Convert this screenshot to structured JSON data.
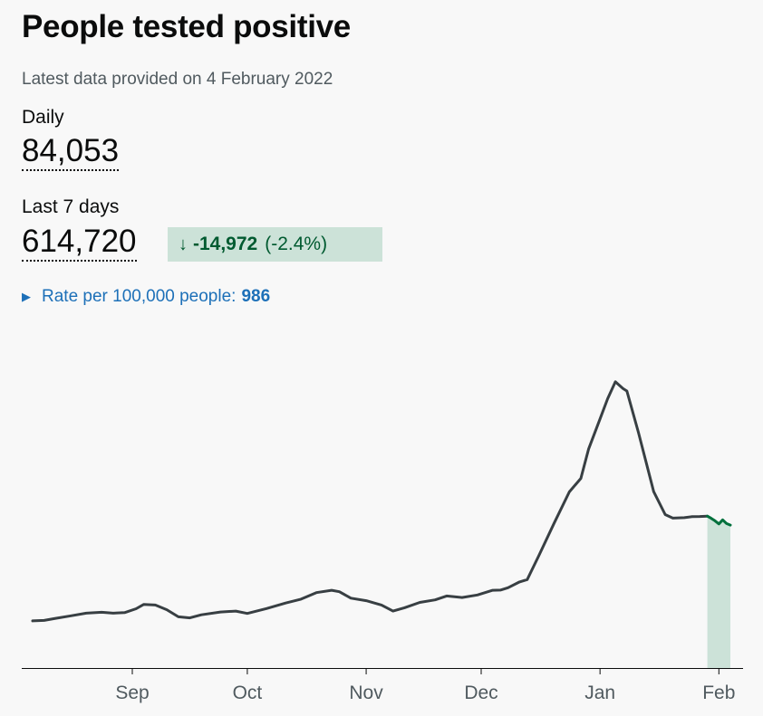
{
  "header": {
    "title": "People tested positive",
    "updated": "Latest data provided on 4 February 2022"
  },
  "metrics": {
    "daily_label": "Daily",
    "daily_value": "84,053",
    "week_label": "Last 7 days",
    "week_value": "614,720",
    "change_arrow": "↓",
    "change_value": "-14,972",
    "change_percent": "(-2.4%)"
  },
  "rate": {
    "label": "Rate per 100,000 people:",
    "value": "986"
  },
  "colors": {
    "line": "#383f43",
    "recent_line": "#00703c",
    "recent_fill": "#cce2d8",
    "axis": "#0b0c0c",
    "tick_text": "#505a5f"
  },
  "chart_data": {
    "type": "line",
    "x_ticks": [
      "Sep",
      "Oct",
      "Nov",
      "Dec",
      "Jan",
      "Feb"
    ],
    "x_domain": [
      "2021-08-06",
      "2022-02-04"
    ],
    "y_domain": [
      0,
      186000
    ],
    "highlight_from": "2022-01-29",
    "series": [
      {
        "points": [
          [
            "2021-08-06",
            28000
          ],
          [
            "2021-08-09",
            28300
          ],
          [
            "2021-08-12",
            29500
          ],
          [
            "2021-08-16",
            31000
          ],
          [
            "2021-08-20",
            32600
          ],
          [
            "2021-08-24",
            33100
          ],
          [
            "2021-08-27",
            32600
          ],
          [
            "2021-08-30",
            32900
          ],
          [
            "2021-09-02",
            35200
          ],
          [
            "2021-09-04",
            37800
          ],
          [
            "2021-09-07",
            37400
          ],
          [
            "2021-09-10",
            34600
          ],
          [
            "2021-09-13",
            30400
          ],
          [
            "2021-09-16",
            29800
          ],
          [
            "2021-09-19",
            31600
          ],
          [
            "2021-09-24",
            33300
          ],
          [
            "2021-09-28",
            33800
          ],
          [
            "2021-10-01",
            32400
          ],
          [
            "2021-10-06",
            35300
          ],
          [
            "2021-10-11",
            38600
          ],
          [
            "2021-10-15",
            40900
          ],
          [
            "2021-10-19",
            44800
          ],
          [
            "2021-10-23",
            46200
          ],
          [
            "2021-10-25",
            45300
          ],
          [
            "2021-10-28",
            41500
          ],
          [
            "2021-11-01",
            40000
          ],
          [
            "2021-11-05",
            37400
          ],
          [
            "2021-11-08",
            33800
          ],
          [
            "2021-11-11",
            35800
          ],
          [
            "2021-11-15",
            39000
          ],
          [
            "2021-11-19",
            40500
          ],
          [
            "2021-11-22",
            42800
          ],
          [
            "2021-11-26",
            41900
          ],
          [
            "2021-11-30",
            43400
          ],
          [
            "2021-12-04",
            46200
          ],
          [
            "2021-12-06",
            46300
          ],
          [
            "2021-12-08",
            47700
          ],
          [
            "2021-12-11",
            51100
          ],
          [
            "2021-12-13",
            52500
          ],
          [
            "2021-12-16",
            66600
          ],
          [
            "2021-12-20",
            85900
          ],
          [
            "2021-12-24",
            104600
          ],
          [
            "2021-12-27",
            112600
          ],
          [
            "2021-12-29",
            130000
          ],
          [
            "2022-01-01",
            148000
          ],
          [
            "2022-01-03",
            160000
          ],
          [
            "2022-01-05",
            170000
          ],
          [
            "2022-01-07",
            166000
          ],
          [
            "2022-01-08",
            164500
          ],
          [
            "2022-01-11",
            140000
          ],
          [
            "2022-01-15",
            104700
          ],
          [
            "2022-01-18",
            91100
          ],
          [
            "2022-01-20",
            89000
          ],
          [
            "2022-01-23",
            89300
          ],
          [
            "2022-01-25",
            89900
          ],
          [
            "2022-01-27",
            90000
          ],
          [
            "2022-01-29",
            90200
          ],
          [
            "2022-01-30",
            88900
          ],
          [
            "2022-01-31",
            87400
          ],
          [
            "2022-02-01",
            85600
          ],
          [
            "2022-02-02",
            88000
          ],
          [
            "2022-02-03",
            85800
          ],
          [
            "2022-02-04",
            84900
          ]
        ]
      }
    ]
  }
}
